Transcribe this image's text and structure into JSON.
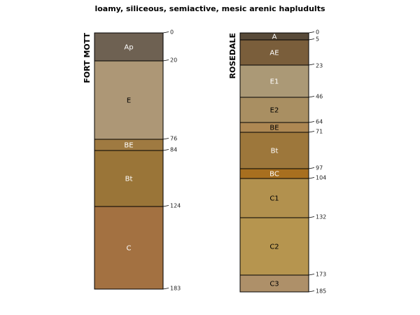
{
  "title": "loamy, siliceous, semiactive, mesic arenic hapludults",
  "profiles": [
    {
      "name": "FORT MOTT",
      "horizons": [
        {
          "name": "Ap",
          "top": 0,
          "bottom": 20,
          "color": "#6E6152",
          "label_color": "#FFFFFF"
        },
        {
          "name": "E",
          "top": 20,
          "bottom": 76,
          "color": "#AD9776",
          "label_color": "#000000"
        },
        {
          "name": "BE",
          "top": 76,
          "bottom": 84,
          "color": "#9F7A41",
          "label_color": "#FFFFFF"
        },
        {
          "name": "Bt",
          "top": 84,
          "bottom": 124,
          "color": "#9A7538",
          "label_color": "#FFFFFF"
        },
        {
          "name": "C",
          "top": 124,
          "bottom": 183,
          "color": "#A37141",
          "label_color": "#FFFFFF"
        }
      ],
      "depth_labels": [
        "0",
        "20",
        "76",
        "84",
        "124",
        "183"
      ]
    },
    {
      "name": "ROSEDALE",
      "horizons": [
        {
          "name": "A",
          "top": 0,
          "bottom": 5,
          "color": "#584A39",
          "label_color": "#FFFFFF"
        },
        {
          "name": "AE",
          "top": 5,
          "bottom": 23,
          "color": "#7A5E3B",
          "label_color": "#FFFFFF"
        },
        {
          "name": "E1",
          "top": 23,
          "bottom": 46,
          "color": "#AB9976",
          "label_color": "#FFFFFF"
        },
        {
          "name": "E2",
          "top": 46,
          "bottom": 64,
          "color": "#A98F62",
          "label_color": "#000000"
        },
        {
          "name": "BE",
          "top": 64,
          "bottom": 71,
          "color": "#AE8853",
          "label_color": "#000000"
        },
        {
          "name": "Bt",
          "top": 71,
          "bottom": 97,
          "color": "#9D773B",
          "label_color": "#FFFFFF"
        },
        {
          "name": "BC",
          "top": 97,
          "bottom": 104,
          "color": "#A86F1F",
          "label_color": "#FFFFFF"
        },
        {
          "name": "C1",
          "top": 104,
          "bottom": 132,
          "color": "#B2914E",
          "label_color": "#000000"
        },
        {
          "name": "C2",
          "top": 132,
          "bottom": 173,
          "color": "#B6954F",
          "label_color": "#000000"
        },
        {
          "name": "C3",
          "top": 173,
          "bottom": 185,
          "color": "#AE9069",
          "label_color": "#000000"
        }
      ],
      "depth_labels": [
        "0",
        "5",
        "23",
        "46",
        "64",
        "71",
        "97",
        "104",
        "132",
        "173",
        "185"
      ]
    }
  ]
}
